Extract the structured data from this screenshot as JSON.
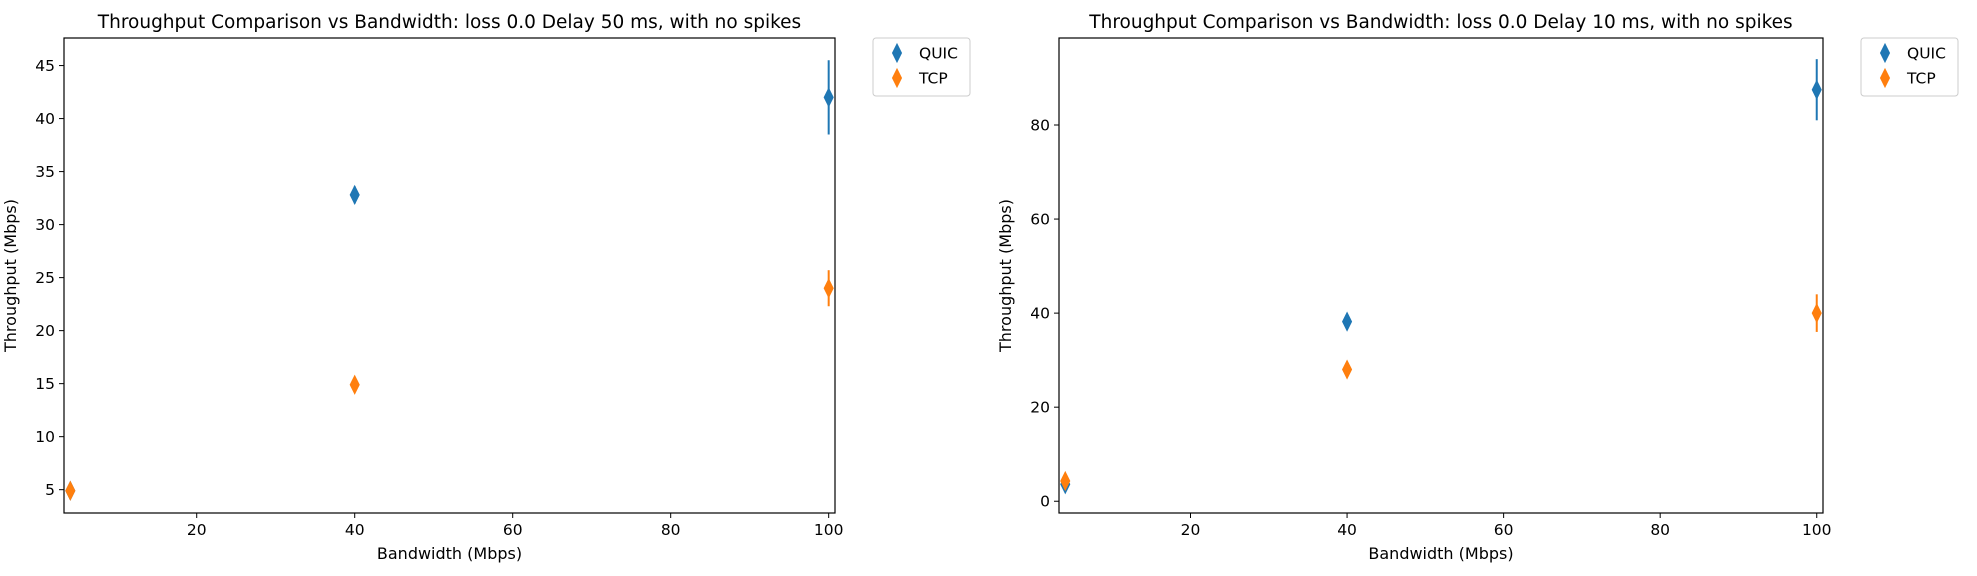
{
  "chart_data": [
    {
      "type": "scatter",
      "title": "Throughput Comparison vs Bandwidth: loss 0.0 Delay 50 ms, with no spikes",
      "xlabel": "Bandwidth (Mbps)",
      "ylabel": "Throughput (Mbps)",
      "xlim": [
        3.2,
        100.8
      ],
      "ylim": [
        2.8,
        47.6
      ],
      "xticks": [
        20,
        40,
        60,
        80,
        100
      ],
      "yticks": [
        5,
        10,
        15,
        20,
        25,
        30,
        35,
        40,
        45
      ],
      "grid": false,
      "legend_position": "outside-top-right",
      "marker": "thin-diamond",
      "series": [
        {
          "name": "QUIC",
          "color": "#1f77b4",
          "x": [
            4,
            40,
            100
          ],
          "y": [
            4.9,
            32.8,
            42.0
          ],
          "yerr": [
            0.3,
            0.8,
            3.5
          ]
        },
        {
          "name": "TCP",
          "color": "#ff7f0e",
          "x": [
            4,
            40,
            100
          ],
          "y": [
            4.9,
            14.9,
            24.0
          ],
          "yerr": [
            0.6,
            0.6,
            1.7
          ]
        }
      ]
    },
    {
      "type": "scatter",
      "title": "Throughput Comparison vs Bandwidth: loss 0.0 Delay 10 ms, with no spikes",
      "xlabel": "Bandwidth (Mbps)",
      "ylabel": "Throughput (Mbps)",
      "xlim": [
        3.2,
        100.8
      ],
      "ylim": [
        -2.5,
        98.5
      ],
      "xticks": [
        20,
        40,
        60,
        80,
        100
      ],
      "yticks": [
        0,
        20,
        40,
        60,
        80
      ],
      "grid": false,
      "legend_position": "outside-top-right",
      "marker": "thin-diamond",
      "series": [
        {
          "name": "QUIC",
          "color": "#1f77b4",
          "x": [
            4,
            40,
            100
          ],
          "y": [
            3.6,
            38.2,
            87.5
          ],
          "yerr": [
            1.5,
            1.5,
            6.5
          ]
        },
        {
          "name": "TCP",
          "color": "#ff7f0e",
          "x": [
            4,
            40,
            100
          ],
          "y": [
            4.3,
            28.0,
            40.0
          ],
          "yerr": [
            1.2,
            1.5,
            4.0
          ]
        }
      ]
    }
  ]
}
